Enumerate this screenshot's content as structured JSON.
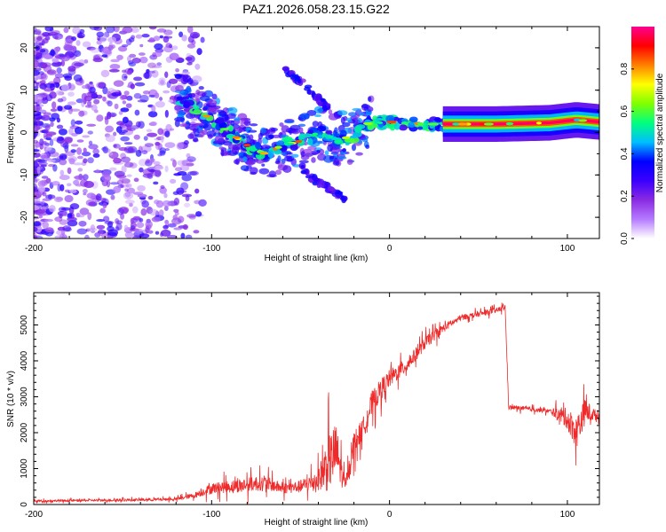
{
  "title": "PAZ1.2026.058.23.15.G22",
  "colors": {
    "snr_line": "#ee2a2a",
    "frame": "#000000",
    "background": "#ffffff"
  },
  "colorbar": {
    "label": "Normalized spectral amplitude",
    "range": [
      0,
      1
    ],
    "ticks": [
      "0.0",
      "0.2",
      "0.4",
      "0.6",
      "0.8"
    ],
    "stops": [
      "#ffffff",
      "#b57bff",
      "#8a2be2",
      "#3a00ff",
      "#0000ff",
      "#00bfff",
      "#00ff7f",
      "#7fff00",
      "#ffff00",
      "#ff8000",
      "#ff0000",
      "#ff0090"
    ]
  },
  "chart_data": [
    {
      "type": "heatmap",
      "title": "PAZ1.2026.058.23.15.G22",
      "xlabel": "Height of straight line (km)",
      "ylabel": "Frequency (Hz)",
      "xlim": [
        -200,
        118
      ],
      "ylim": [
        -25,
        25
      ],
      "xticks": [
        "-200",
        "-100",
        "0",
        "100"
      ],
      "yticks": [
        "-20",
        "-10",
        "0",
        "10",
        "20"
      ],
      "ridge": {
        "description_points_km_hz": [
          [
            -118,
            8
          ],
          [
            -110,
            6
          ],
          [
            -100,
            3
          ],
          [
            -90,
            0
          ],
          [
            -80,
            -3
          ],
          [
            -70,
            -5
          ],
          [
            -60,
            -3
          ],
          [
            -50,
            -2
          ],
          [
            -40,
            0
          ],
          [
            -30,
            -1.5
          ],
          [
            -20,
            -1
          ],
          [
            -15,
            2
          ],
          [
            0,
            2.5
          ],
          [
            20,
            2
          ],
          [
            60,
            2
          ],
          [
            90,
            2.3
          ],
          [
            105,
            3
          ],
          [
            118,
            2.5
          ]
        ],
        "strong_from_km": 30
      },
      "branches": [
        {
          "name": "upper",
          "points_km_hz": [
            [
              -60,
              15
            ],
            [
              -50,
              12
            ],
            [
              -40,
              8
            ],
            [
              -35,
              6
            ]
          ]
        },
        {
          "name": "lower",
          "points_km_hz": [
            [
              -50,
              -8
            ],
            [
              -40,
              -12
            ],
            [
              -30,
              -14
            ],
            [
              -25,
              -16
            ]
          ]
        }
      ]
    },
    {
      "type": "line",
      "xlabel": "Height of straight line (km)",
      "ylabel": "SNR (10 * v/v)",
      "xlim": [
        -200,
        118
      ],
      "ylim": [
        0,
        5900
      ],
      "xticks": [
        "-200",
        "-100",
        "0",
        "100"
      ],
      "yticks": [
        "0",
        "1000",
        "2000",
        "3000",
        "4000",
        "5000"
      ],
      "series": [
        {
          "name": "SNR",
          "x": [
            -200,
            -180,
            -160,
            -140,
            -120,
            -110,
            -100,
            -90,
            -80,
            -70,
            -60,
            -50,
            -40,
            -35,
            -30,
            -25,
            -20,
            -15,
            -10,
            -5,
            0,
            10,
            20,
            30,
            40,
            50,
            60,
            65,
            67,
            70,
            80,
            90,
            100,
            105,
            110,
            118
          ],
          "y": [
            100,
            110,
            120,
            130,
            150,
            250,
            450,
            500,
            550,
            600,
            450,
            500,
            700,
            1100,
            1500,
            500,
            1700,
            2100,
            2800,
            3200,
            3500,
            3900,
            4500,
            4900,
            5200,
            5300,
            5400,
            5500,
            2700,
            2700,
            2650,
            2600,
            2400,
            2000,
            2600,
            2450
          ],
          "spread": [
            60,
            60,
            60,
            70,
            80,
            150,
            300,
            350,
            400,
            400,
            300,
            350,
            600,
            1500,
            1600,
            300,
            700,
            600,
            700,
            600,
            500,
            400,
            350,
            250,
            150,
            150,
            150,
            150,
            120,
            120,
            120,
            120,
            600,
            900,
            700,
            150
          ]
        }
      ]
    }
  ]
}
